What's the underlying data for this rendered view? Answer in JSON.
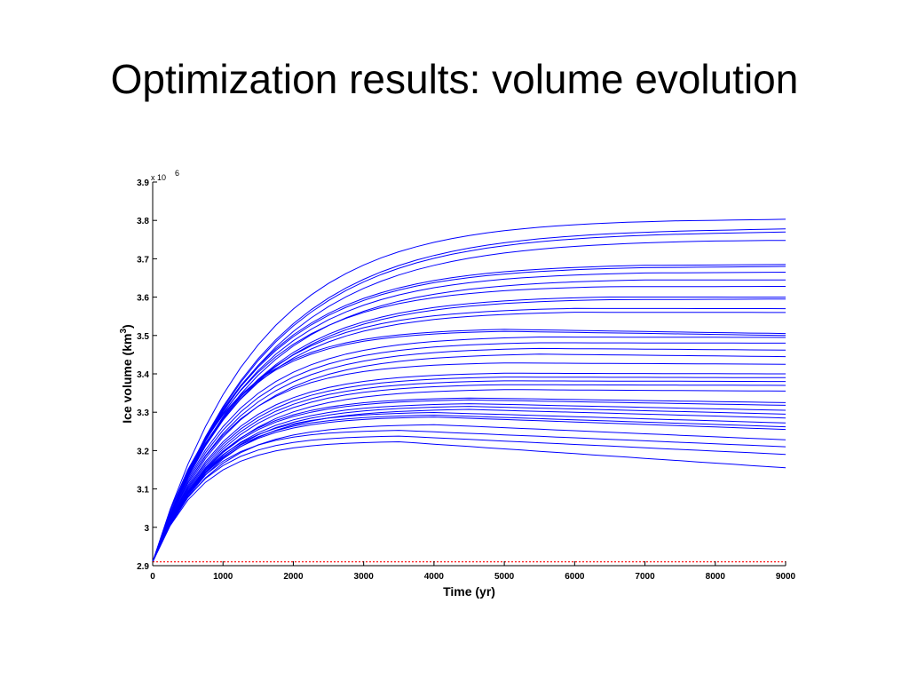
{
  "slide": {
    "title": "Optimization results: volume evolution"
  },
  "chart_data": {
    "type": "line",
    "xlabel": "Time (yr)",
    "ylabel_main": "Ice volume (km",
    "ylabel_sup": "3",
    "ylabel_end": ")",
    "y_exponent_label": "x 10",
    "y_exponent_power": "6",
    "xlim": [
      0,
      9000
    ],
    "ylim": [
      2.9,
      3.9
    ],
    "xticks": [
      0,
      1000,
      2000,
      3000,
      4000,
      5000,
      6000,
      7000,
      8000,
      9000
    ],
    "yticks": [
      2.9,
      3,
      3.1,
      3.2,
      3.3,
      3.4,
      3.5,
      3.6,
      3.7,
      3.8,
      3.9
    ],
    "ytick_labels": [
      "2.9",
      "3",
      "3.1",
      "3.2",
      "3.3",
      "3.4",
      "3.5",
      "3.6",
      "3.7",
      "3.8",
      "3.9"
    ],
    "grid": false,
    "line_color": "#0000ff",
    "reference_color": "#ff0000",
    "reference_line": {
      "x": [
        0,
        9000
      ],
      "y": [
        2.91,
        2.91
      ]
    },
    "series_shape": {
      "y0": 2.91,
      "x_step": 250
    },
    "series": [
      {
        "peak": 3.805,
        "peak_time": 7500,
        "end": 3.803
      },
      {
        "peak": 3.78,
        "peak_time": 8000,
        "end": 3.778
      },
      {
        "peak": 3.772,
        "peak_time": 8000,
        "end": 3.77
      },
      {
        "peak": 3.752,
        "peak_time": 8000,
        "end": 3.748
      },
      {
        "peak": 3.688,
        "peak_time": 7000,
        "end": 3.685
      },
      {
        "peak": 3.682,
        "peak_time": 7000,
        "end": 3.68
      },
      {
        "peak": 3.668,
        "peak_time": 7000,
        "end": 3.665
      },
      {
        "peak": 3.65,
        "peak_time": 7000,
        "end": 3.645
      },
      {
        "peak": 3.632,
        "peak_time": 6500,
        "end": 3.628
      },
      {
        "peak": 3.605,
        "peak_time": 6500,
        "end": 3.6
      },
      {
        "peak": 3.598,
        "peak_time": 6500,
        "end": 3.595
      },
      {
        "peak": 3.575,
        "peak_time": 6000,
        "end": 3.57
      },
      {
        "peak": 3.565,
        "peak_time": 6000,
        "end": 3.56
      },
      {
        "peak": 3.52,
        "peak_time": 5000,
        "end": 3.505
      },
      {
        "peak": 3.515,
        "peak_time": 5000,
        "end": 3.5
      },
      {
        "peak": 3.5,
        "peak_time": 5500,
        "end": 3.495
      },
      {
        "peak": 3.485,
        "peak_time": 5500,
        "end": 3.48
      },
      {
        "peak": 3.47,
        "peak_time": 5500,
        "end": 3.462
      },
      {
        "peak": 3.455,
        "peak_time": 5500,
        "end": 3.445
      },
      {
        "peak": 3.432,
        "peak_time": 5000,
        "end": 3.425
      },
      {
        "peak": 3.405,
        "peak_time": 5000,
        "end": 3.4
      },
      {
        "peak": 3.395,
        "peak_time": 5000,
        "end": 3.39
      },
      {
        "peak": 3.385,
        "peak_time": 5000,
        "end": 3.38
      },
      {
        "peak": 3.375,
        "peak_time": 5000,
        "end": 3.37
      },
      {
        "peak": 3.362,
        "peak_time": 5000,
        "end": 3.355
      },
      {
        "peak": 3.34,
        "peak_time": 4500,
        "end": 3.325
      },
      {
        "peak": 3.335,
        "peak_time": 4500,
        "end": 3.318
      },
      {
        "peak": 3.325,
        "peak_time": 4500,
        "end": 3.305
      },
      {
        "peak": 3.318,
        "peak_time": 4500,
        "end": 3.295
      },
      {
        "peak": 3.31,
        "peak_time": 4500,
        "end": 3.285
      },
      {
        "peak": 3.302,
        "peak_time": 4000,
        "end": 3.272
      },
      {
        "peak": 3.295,
        "peak_time": 4000,
        "end": 3.262
      },
      {
        "peak": 3.29,
        "peak_time": 4000,
        "end": 3.255
      },
      {
        "peak": 3.27,
        "peak_time": 4000,
        "end": 3.228
      },
      {
        "peak": 3.255,
        "peak_time": 3500,
        "end": 3.21
      },
      {
        "peak": 3.24,
        "peak_time": 3500,
        "end": 3.19
      },
      {
        "peak": 3.225,
        "peak_time": 3500,
        "end": 3.155
      }
    ]
  }
}
